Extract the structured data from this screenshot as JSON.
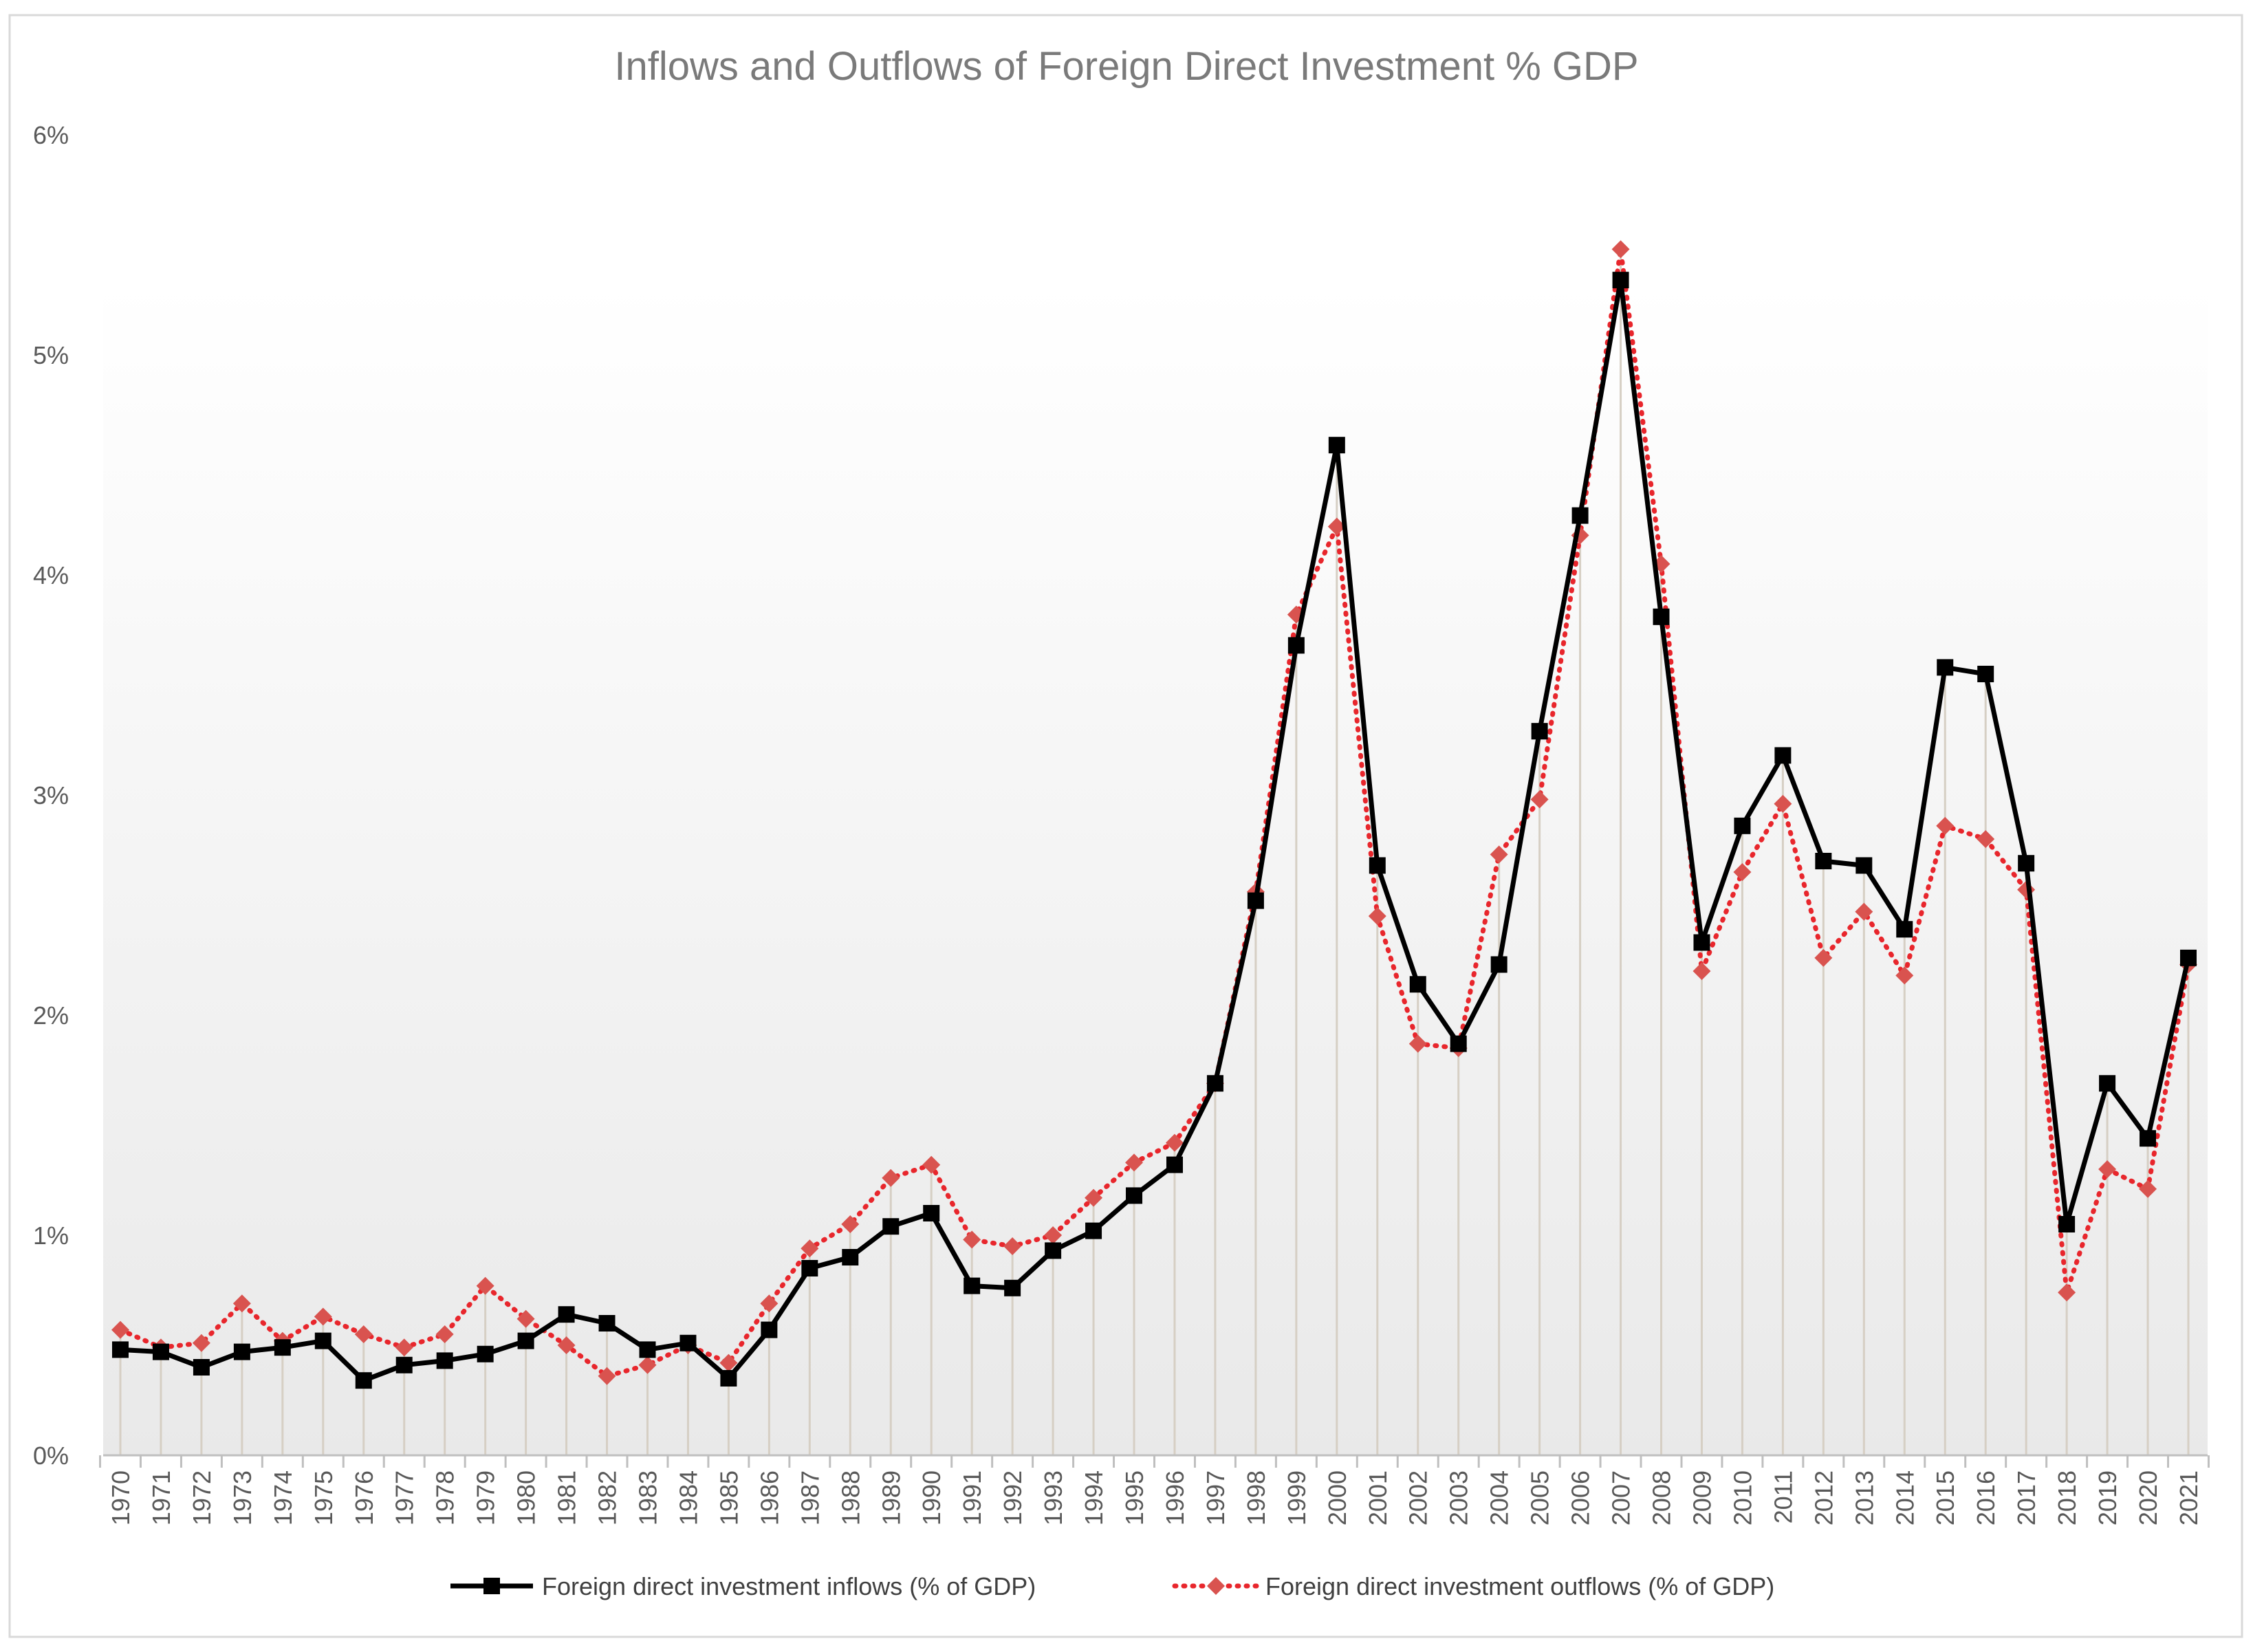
{
  "chart_data": {
    "type": "line",
    "title": "Inflows and Outflows of Foreign Direct Investment % GDP",
    "xlabel": "",
    "ylabel": "",
    "ylim": [
      0,
      6
    ],
    "y_ticks": [
      "0%",
      "1%",
      "2%",
      "3%",
      "4%",
      "5%",
      "6%"
    ],
    "grid": false,
    "drop_lines": true,
    "legend_position": "bottom-center",
    "x": [
      "1970",
      "1971",
      "1972",
      "1973",
      "1974",
      "1975",
      "1976",
      "1977",
      "1978",
      "1979",
      "1980",
      "1981",
      "1982",
      "1983",
      "1984",
      "1985",
      "1986",
      "1987",
      "1988",
      "1989",
      "1990",
      "1991",
      "1992",
      "1993",
      "1994",
      "1995",
      "1996",
      "1997",
      "1998",
      "1999",
      "2000",
      "2001",
      "2002",
      "2003",
      "2004",
      "2005",
      "2006",
      "2007",
      "2008",
      "2009",
      "2010",
      "2011",
      "2012",
      "2013",
      "2014",
      "2015",
      "2016",
      "2017",
      "2018",
      "2019",
      "2020",
      "2021"
    ],
    "series": [
      {
        "name": "Foreign direct investment inflows (% of GDP)",
        "color": "#000000",
        "line_style": "solid",
        "marker": "square",
        "values": [
          0.48,
          0.47,
          0.4,
          0.47,
          0.49,
          0.52,
          0.34,
          0.41,
          0.43,
          0.46,
          0.52,
          0.64,
          0.6,
          0.48,
          0.51,
          0.35,
          0.57,
          0.85,
          0.9,
          1.04,
          1.1,
          0.77,
          0.76,
          0.93,
          1.02,
          1.18,
          1.32,
          1.69,
          2.52,
          3.68,
          4.59,
          2.68,
          2.14,
          1.87,
          2.23,
          3.29,
          4.27,
          5.34,
          3.81,
          2.33,
          2.86,
          3.18,
          2.7,
          2.68,
          2.39,
          3.58,
          3.55,
          2.69,
          1.05,
          1.69,
          1.44,
          2.26
        ]
      },
      {
        "name": "Foreign direct investment outflows (% of GDP)",
        "color": "#e8262c",
        "marker_color": "#d9534f",
        "line_style": "dotted",
        "marker": "diamond",
        "values": [
          0.57,
          0.49,
          0.51,
          0.69,
          0.52,
          0.63,
          0.55,
          0.49,
          0.55,
          0.77,
          0.62,
          0.5,
          0.36,
          0.41,
          0.5,
          0.42,
          0.69,
          0.94,
          1.05,
          1.26,
          1.32,
          0.98,
          0.95,
          1.0,
          1.17,
          1.33,
          1.42,
          1.69,
          2.56,
          3.82,
          4.22,
          2.45,
          1.87,
          1.85,
          2.73,
          2.98,
          4.18,
          5.48,
          4.05,
          2.2,
          2.65,
          2.96,
          2.26,
          2.47,
          2.18,
          2.86,
          2.8,
          2.57,
          0.74,
          1.3,
          1.21,
          2.23
        ]
      }
    ]
  }
}
